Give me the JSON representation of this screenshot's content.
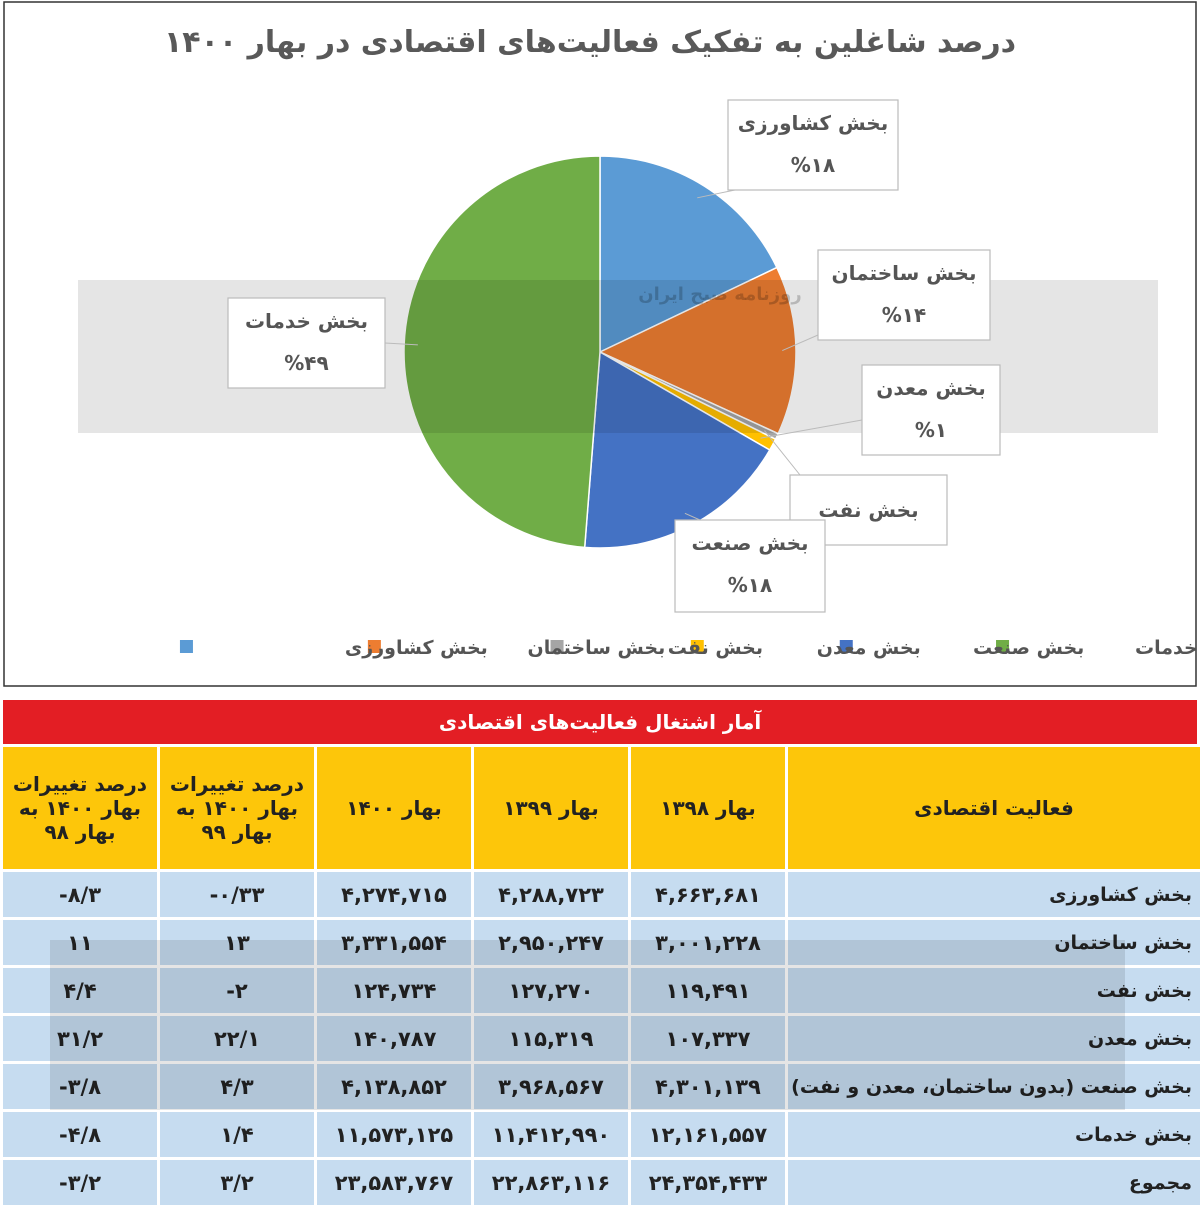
{
  "chart_data": {
    "type": "pie",
    "title": "درصد شاغلین به تفکیک فعالیت‌های اقتصادی در بهار ۱۴۰۰",
    "categories": [
      "بخش کشاورزی",
      "بخش ساختمان",
      "بخش نفت",
      "بخش معدن",
      "بخش صنعت",
      "بخش خدمات"
    ],
    "values": [
      18,
      14,
      0.5,
      1,
      18,
      49
    ],
    "value_labels": [
      "%۱۸",
      "%۱۴",
      null,
      "%۱",
      "%۱۸",
      "%۴۹"
    ],
    "colors": [
      "#5b9bd5",
      "#ed7d31",
      "#a5a5a5",
      "#ffc000",
      "#4472c4",
      "#70ad47"
    ],
    "legend": "bottom",
    "watermark": "روزنامه صبح ایران"
  },
  "table": {
    "title": "آمار اشتغال فعالیت‌های  اقتصادی",
    "header": [
      "فعالیت اقتصادی",
      "بهار ۱۳۹۸",
      "بهار ۱۳۹۹",
      "بهار ۱۴۰۰",
      "درصد تغییرات بهار ۱۴۰۰ به بهار ۹۹",
      "درصد تغییرات بهار ۱۴۰۰ به بهار ۹۸"
    ],
    "rows": [
      [
        "بخش کشاورزی",
        "۴,۶۶۳,۶۸۱",
        "۴,۲۸۸,۷۲۳",
        "۴,۲۷۴,۷۱۵",
        "-۰/۳۳",
        "-۸/۳"
      ],
      [
        "بخش ساختمان",
        "۳,۰۰۱,۲۲۸",
        "۲,۹۵۰,۲۴۷",
        "۳,۳۳۱,۵۵۴",
        "۱۳",
        "۱۱"
      ],
      [
        "بخش نفت",
        "۱۱۹,۴۹۱",
        "۱۲۷,۲۷۰",
        "۱۲۴,۷۳۴",
        "-۲",
        "۴/۴"
      ],
      [
        "بخش معدن",
        "۱۰۷,۳۳۷",
        "۱۱۵,۳۱۹",
        "۱۴۰,۷۸۷",
        "۲۲/۱",
        "۳۱/۲"
      ],
      [
        "بخش صنعت (بدون ساختمان، معدن و نفت)",
        "۴,۳۰۱,۱۳۹",
        "۳,۹۶۸,۵۶۷",
        "۴,۱۳۸,۸۵۲",
        "۴/۳",
        "-۳/۸"
      ],
      [
        "بخش خدمات",
        "۱۲,۱۶۱,۵۵۷",
        "۱۱,۴۱۲,۹۹۰",
        "۱۱,۵۷۳,۱۲۵",
        "۱/۴",
        "-۴/۸"
      ],
      [
        "مجموع",
        "۲۴,۳۵۴,۴۳۳",
        "۲۲,۸۶۳,۱۱۶",
        "۲۳,۵۸۳,۷۶۷",
        "۳/۲",
        "-۳/۲"
      ]
    ]
  }
}
